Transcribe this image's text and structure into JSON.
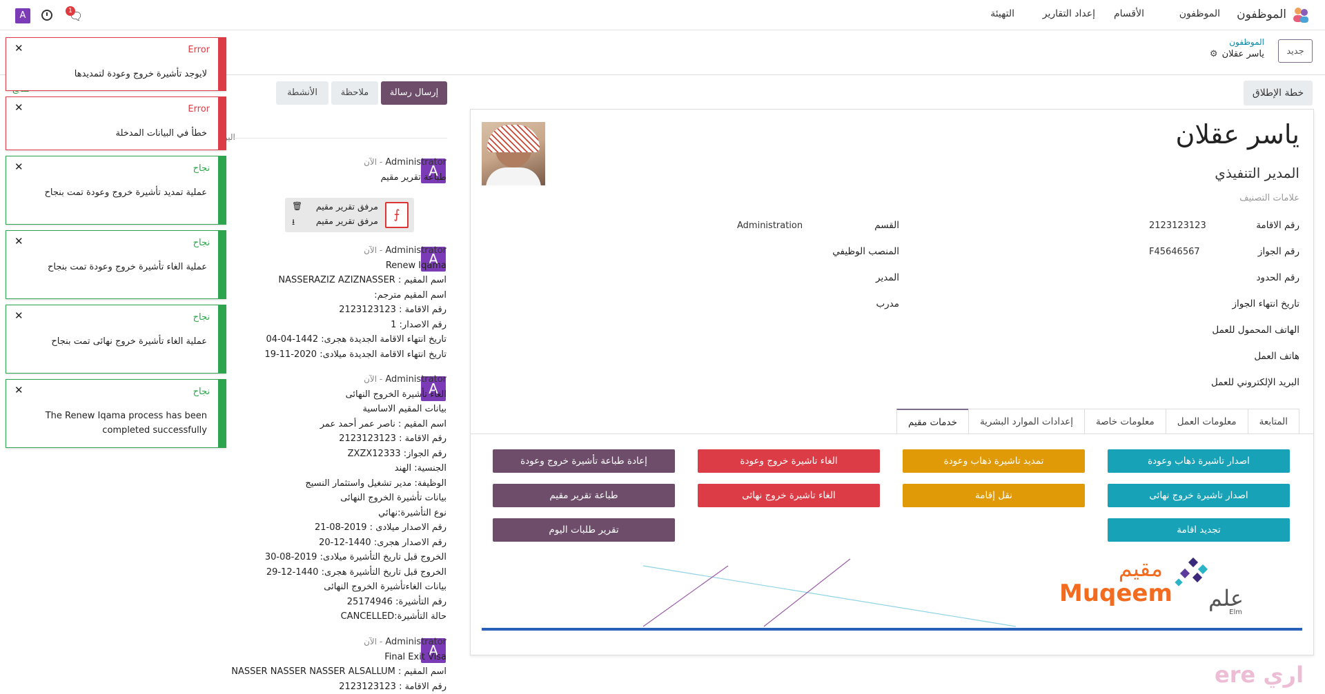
{
  "topnav": {
    "brand": "الموظفون",
    "items": [
      "الموظفون",
      "الأقسام",
      "إعداد التقارير",
      "التهيئة"
    ],
    "avatar_letter": "A",
    "chat_badge": "1"
  },
  "controlpanel": {
    "new_button": "جديد",
    "breadcrumb_parent": "الموظفون",
    "breadcrumb_current": "ياسر عقلان"
  },
  "toasts": [
    {
      "type": "error",
      "title": "Error",
      "message": "لايوجد تأشيرة خروج وعودة لتمديدها"
    },
    {
      "type": "error",
      "title": "Error",
      "message": "خطأ في البيانات المدخلة"
    },
    {
      "type": "success",
      "title": "نجاح",
      "message": "عملية تمديد تأشيرة خروج وعودة تمت بنجاح"
    },
    {
      "type": "success",
      "title": "نجاح",
      "message": "عملية الغاء تأشيرة خروج وعودة تمت بنجاح"
    },
    {
      "type": "success",
      "title": "نجاح",
      "message": "عملية الغاء تأشيرة خروج نهائى تمت بنجاح"
    },
    {
      "type": "success",
      "title": "نجاح",
      "message": "The Renew Iqama process has been completed successfully"
    }
  ],
  "chatter": {
    "send_message": "إرسال رسالة",
    "note": "ملاحظة",
    "activities": "الأنشطة",
    "partial_label": "اليو",
    "partial_top": "متابع",
    "messages": [
      {
        "author": "Administrator",
        "time": "الآن",
        "lines": [
          "طباعة تقرير مقيم"
        ]
      },
      {
        "author": "Administrator",
        "time": "الآن",
        "lines": [
          "Renew Iqama",
          "اسم المقيم : NASSERAZIZ AZIZNASSER",
          "اسم المقيم مترجم:",
          "رقم الاقامة : 2123123123",
          "رقم الاصدار: 1",
          "تاريخ انتهاء الاقامة الجديدة هجرى: 1442-04-04",
          "تاريخ انتهاء الاقامة الجديدة ميلادى: 2020-11-19"
        ]
      },
      {
        "author": "Administrator",
        "time": "الآن",
        "lines": [
          "الغاء تأشيرة الخروج النهائى",
          "بيانات المقيم الاساسية",
          "اسم المقيم : ناصر عمر أحمد عمر",
          "رقم الاقامة : 2123123123",
          "رقم الجواز: ZXZX12333",
          "الجنسية: الهند",
          "الوظيفة: مدير تشغيل واستثمار النسيج",
          "بيانات تأشيرة الخروج النهائى",
          "نوع التأشيرة:نهائي",
          "رقم الاصدار ميلادى : 2019-08-21",
          "رقم الاصدار هجرى: 1440-12-20",
          "الخروج قبل تاريخ التأشيرة ميلادى: 2019-08-30",
          "الخروج قبل تاريخ التأشيرة هجرى: 1440-12-29",
          "بيانات الغاءتأشيرة الخروج النهائى",
          "رقم التأشيرة: 25174946",
          "حالة التأشيرة:CANCELLED"
        ]
      },
      {
        "author": "Administrator",
        "time": "الآن",
        "lines": [
          "Final Exit Visa",
          "اسم المقيم : NASSER NASSER NASSER ALSALLUM",
          "رقم الاقامة : 2123123123"
        ]
      }
    ],
    "attachment": {
      "name1": "مرفق تقرير مقيم",
      "name2": "مرفق تقرير مقيم"
    }
  },
  "sheet": {
    "launch_plan": "خطة الإطلاق",
    "name": "ياسر عقلان",
    "job_title": "المدير التنفيذي",
    "tags_placeholder": "علامات التصنيف",
    "fields_right": [
      {
        "label": "رقم الاقامة",
        "value": "2123123123"
      },
      {
        "label": "رقم الجواز",
        "value": "F45646567"
      },
      {
        "label": "رقم الحدود",
        "value": ""
      },
      {
        "label": "تاريخ انتهاء الجواز",
        "value": ""
      },
      {
        "label": "الهاتف المحمول للعمل",
        "value": ""
      },
      {
        "label": "هاتف العمل",
        "value": ""
      },
      {
        "label": "البريد الإلكتروني للعمل",
        "value": ""
      }
    ],
    "fields_left": [
      {
        "label": "القسم",
        "value": "Administration"
      },
      {
        "label": "المنصب الوظيفي",
        "value": ""
      },
      {
        "label": "المدير",
        "value": ""
      },
      {
        "label": "مدرب",
        "value": ""
      }
    ],
    "tabs": [
      "المتابعة",
      "معلومات العمل",
      "معلومات خاصة",
      "إعدادات الموارد البشرية",
      "خدمات مقيم"
    ],
    "buttons": [
      {
        "label": "اصدار تاشيرة ذهاب وعودة",
        "color": "#17a2b8"
      },
      {
        "label": "تمديد تاشيرة ذهاب وعودة",
        "color": "#e09a07"
      },
      {
        "label": "الغاء تاشيرة خروج وعودة",
        "color": "#dc3c45"
      },
      {
        "label": "إعادة طباعة تأشيرة خروج وعودة",
        "color": "#6e4d6b"
      },
      {
        "label": "اصدار تاشيرة خروج نهائى",
        "color": "#17a2b8"
      },
      {
        "label": "نقل إقامة",
        "color": "#e09a07"
      },
      {
        "label": "الغاء تاشيرة خروج نهائى",
        "color": "#dc3c45"
      },
      {
        "label": "طباعة تقرير مقيم",
        "color": "#6e4d6b"
      },
      {
        "label": "تجديد اقامة",
        "color": "#17a2b8"
      },
      {
        "label": "تقرير طلبات اليوم",
        "color": "#6e4d6b"
      }
    ],
    "logo_muqeem_ar": "مقيم",
    "logo_muqeem_en": "Muqeem",
    "logo_elm_ar": "علم",
    "logo_elm_en": "Elm"
  },
  "watermark": "ere اري"
}
